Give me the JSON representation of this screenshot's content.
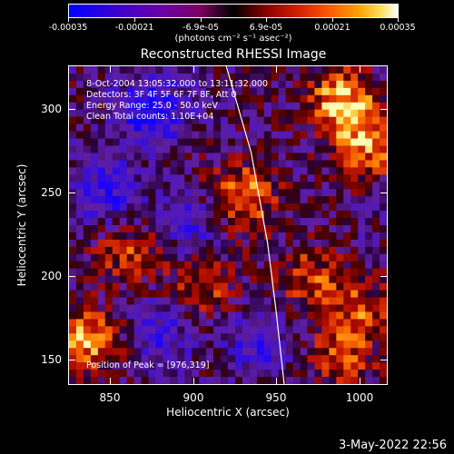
{
  "colorbar": {
    "ticks": [
      "-0.00035",
      "-0.00021",
      "-6.9e-05",
      "6.9e-05",
      "0.00021",
      "0.00035"
    ],
    "unit_label": "(photons cm⁻² s⁻¹ asec⁻²)",
    "colors": [
      "#0000ff",
      "#6a00a8",
      "#000000",
      "#d42000",
      "#ffa000",
      "#ffffff"
    ]
  },
  "plot": {
    "title": "Reconstructed RHESSI Image",
    "info_lines": [
      " 8-Oct-2004 13:05:32.000 to 13:11:32.000",
      "Detectors: 3F 4F 5F 6F 7F 8F, Att 0",
      "Energy Range: 25.0 - 50.0 keV",
      "Clean     Total counts: 1.10E+04"
    ],
    "peak_text": "Position of Peak = [976,319]",
    "xlabel": "Heliocentric X (arcsec)",
    "ylabel": "Heliocentric Y (arcsec)"
  },
  "timestamp": "3-May-2022 22:56",
  "chart_data": {
    "type": "heatmap",
    "title": "Reconstructed RHESSI Image",
    "xlabel": "Heliocentric X (arcsec)",
    "ylabel": "Heliocentric Y (arcsec)",
    "x_ticks": [
      850,
      900,
      950,
      1000
    ],
    "y_ticks": [
      150,
      200,
      250,
      300
    ],
    "xlim": [
      825,
      1017
    ],
    "ylim": [
      135,
      327
    ],
    "colorbar_range": [
      -0.00035,
      0.00035
    ],
    "colorbar_ticks": [
      -0.00035,
      -0.00021,
      -6.9e-05,
      6.9e-05,
      0.00021,
      0.00035
    ],
    "peak": [
      976,
      319
    ],
    "limb": [
      [
        920,
        327
      ],
      [
        935,
        275
      ],
      [
        945,
        220
      ],
      [
        950,
        180
      ],
      [
        955,
        135
      ]
    ],
    "hotspots": [
      {
        "x": 990,
        "y": 305,
        "level": 1.0
      },
      {
        "x": 1005,
        "y": 280,
        "level": 0.8
      },
      {
        "x": 930,
        "y": 248,
        "level": 0.85
      },
      {
        "x": 835,
        "y": 160,
        "level": 0.9
      },
      {
        "x": 860,
        "y": 215,
        "level": 0.55
      },
      {
        "x": 905,
        "y": 195,
        "level": 0.6
      },
      {
        "x": 970,
        "y": 200,
        "level": 0.55
      },
      {
        "x": 1000,
        "y": 180,
        "level": 0.6
      },
      {
        "x": 990,
        "y": 150,
        "level": 0.55
      }
    ],
    "coldspots": [
      {
        "x": 875,
        "y": 300,
        "level": -0.9
      },
      {
        "x": 850,
        "y": 250,
        "level": -0.6
      },
      {
        "x": 900,
        "y": 230,
        "level": -0.5
      },
      {
        "x": 940,
        "y": 160,
        "level": -0.5
      },
      {
        "x": 880,
        "y": 165,
        "level": -0.5
      }
    ]
  }
}
